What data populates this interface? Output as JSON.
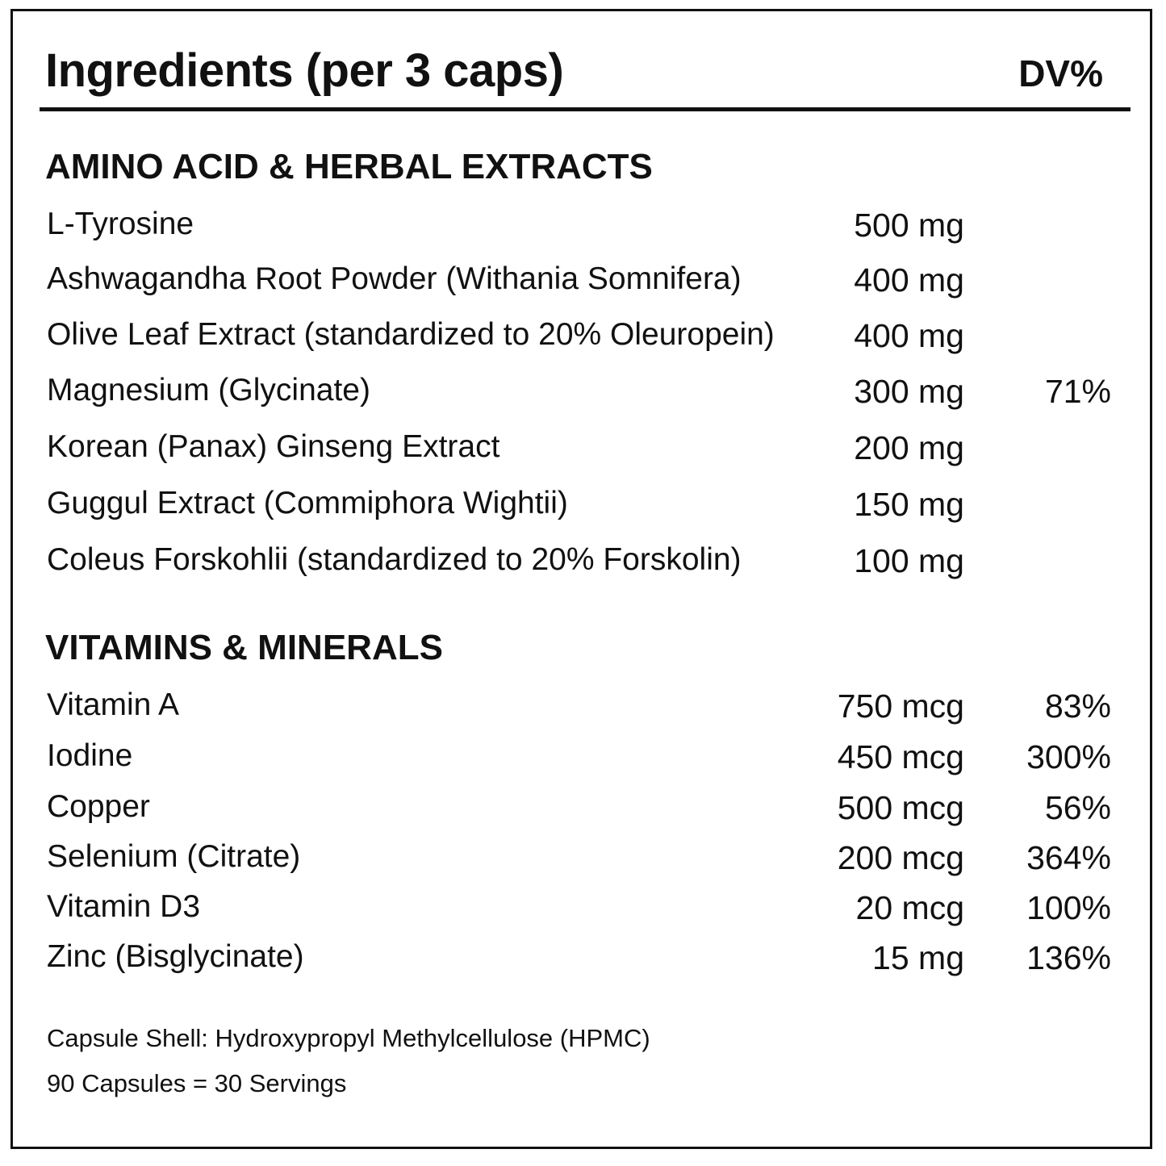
{
  "header": {
    "title": "Ingredients (per 3 caps)",
    "dv_label": "DV%"
  },
  "sections": [
    {
      "heading": "AMINO ACID & HERBAL EXTRACTS",
      "items": [
        {
          "name": "L-Tyrosine",
          "amount": "500 mg",
          "dv": ""
        },
        {
          "name": "Ashwagandha Root Powder (Withania Somnifera)",
          "amount": "400 mg",
          "dv": ""
        },
        {
          "name": "Olive Leaf Extract (standardized to 20% Oleuropein)",
          "amount": "400 mg",
          "dv": ""
        },
        {
          "name": "Magnesium (Glycinate)",
          "amount": "300 mg",
          "dv": "71%"
        },
        {
          "name": "Korean (Panax) Ginseng Extract",
          "amount": "200 mg",
          "dv": ""
        },
        {
          "name": "Guggul Extract (Commiphora Wightii)",
          "amount": "150 mg",
          "dv": ""
        },
        {
          "name": "Coleus Forskohlii (standardized to 20% Forskolin)",
          "amount": "100 mg",
          "dv": ""
        }
      ]
    },
    {
      "heading": "VITAMINS & MINERALS",
      "items": [
        {
          "name": "Vitamin A",
          "amount": "750 mcg",
          "dv": "83%"
        },
        {
          "name": "Iodine",
          "amount": "450 mcg",
          "dv": "300%"
        },
        {
          "name": "Copper",
          "amount": "500 mcg",
          "dv": "56%"
        },
        {
          "name": "Selenium (Citrate)",
          "amount": "200 mcg",
          "dv": "364%"
        },
        {
          "name": "Vitamin D3",
          "amount": "20 mcg",
          "dv": "100%"
        },
        {
          "name": "Zinc (Bisglycinate)",
          "amount": "15 mg",
          "dv": "136%"
        }
      ]
    }
  ],
  "footer": {
    "capsule_shell": "Capsule Shell: Hydroxypropyl Methylcellulose (HPMC)",
    "servings": "90 Capsules = 30 Servings"
  }
}
